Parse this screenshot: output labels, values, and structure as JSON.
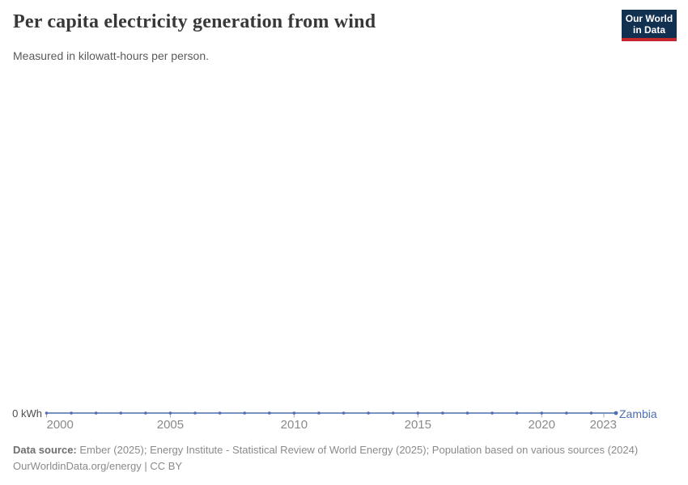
{
  "header": {
    "title": "Per capita electricity generation from wind",
    "subtitle": "Measured in kilowatt-hours per person."
  },
  "logo": {
    "line1": "Our World",
    "line2": "in Data",
    "bg_color": "#12304f",
    "accent_color": "#c6262e"
  },
  "chart_data": {
    "type": "line",
    "title": "Per capita electricity generation from wind",
    "ylabel": "kilowatt-hours per person",
    "x": [
      2000,
      2001,
      2002,
      2003,
      2004,
      2005,
      2006,
      2007,
      2008,
      2009,
      2010,
      2011,
      2012,
      2013,
      2014,
      2015,
      2016,
      2017,
      2018,
      2019,
      2020,
      2021,
      2022,
      2023
    ],
    "series": [
      {
        "name": "Zambia",
        "color": "#4d6eb0",
        "values": [
          0,
          0,
          0,
          0,
          0,
          0,
          0,
          0,
          0,
          0,
          0,
          0,
          0,
          0,
          0,
          0,
          0,
          0,
          0,
          0,
          0,
          0,
          0,
          0
        ]
      }
    ],
    "x_ticks": [
      "2000",
      "2005",
      "2010",
      "2015",
      "2020",
      "2023"
    ],
    "x_tick_years": [
      2000,
      2005,
      2010,
      2015,
      2020,
      2023
    ],
    "y_axis": {
      "tick_label": "0 kWh",
      "tick_value": 0
    },
    "xlim": [
      2000,
      2023
    ],
    "ylim": [
      0,
      0
    ],
    "grid": false,
    "legend_position": "end-of-line"
  },
  "footer": {
    "source_label": "Data source:",
    "source_text": " Ember (2025); Energy Institute - Statistical Review of World Energy (2025); Population based on various sources (2024)",
    "link_text": "OurWorldinData.org/energy",
    "separator": " | ",
    "license_text": "CC BY"
  }
}
